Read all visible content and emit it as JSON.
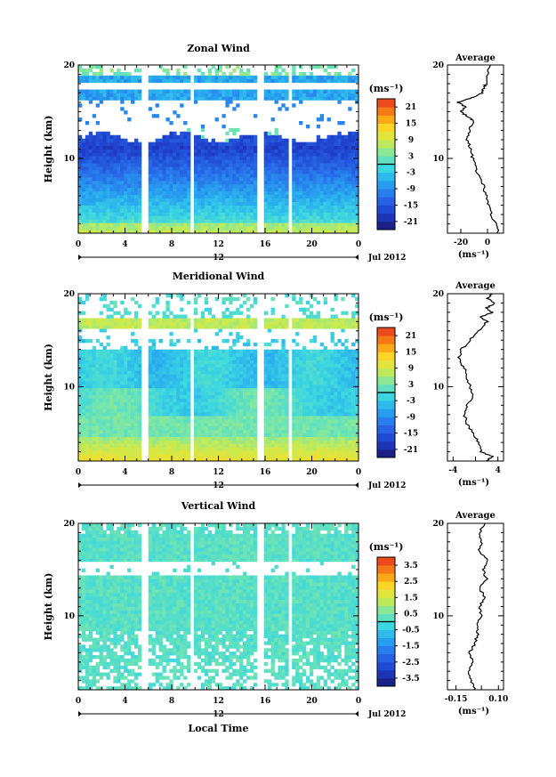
{
  "chart_data": [
    {
      "type": "heatmap",
      "id": "zonal",
      "title": "Zonal Wind",
      "ylabel": "Height (km)",
      "xlabel": "",
      "x_ticks": [
        "0",
        "4",
        "8",
        "12",
        "16",
        "20",
        "0"
      ],
      "xlim": [
        0,
        24
      ],
      "y_ticks": [
        "10",
        "20"
      ],
      "ylim": [
        2,
        20
      ],
      "date_label": "Jul 2012",
      "noon_label": "12",
      "unit_label": "(ms⁻¹)",
      "colorbar_ticks": [
        "21",
        "15",
        "9",
        "3",
        "-3",
        "-9",
        "-15",
        "-21"
      ],
      "colorbar_range": [
        -24,
        24
      ],
      "data_gaps_hours": [
        [
          5.5,
          5.9
        ],
        [
          9.5,
          9.9
        ],
        [
          15.4,
          15.8
        ],
        [
          18.1,
          18.4
        ]
      ],
      "profile": {
        "title": "Average",
        "x_ticks": [
          "-20",
          "0"
        ],
        "xlim": [
          -30,
          12
        ],
        "unit_label": "(ms⁻¹)",
        "points": [
          [
            8,
            2
          ],
          [
            6,
            3
          ],
          [
            3,
            4
          ],
          [
            1,
            5
          ],
          [
            -1,
            6
          ],
          [
            -3,
            7
          ],
          [
            -6,
            8
          ],
          [
            -9,
            9
          ],
          [
            -11,
            10
          ],
          [
            -13,
            11
          ],
          [
            -15,
            12
          ],
          [
            -14,
            13
          ],
          [
            -10,
            14
          ],
          [
            -15,
            14.5
          ],
          [
            -20,
            15
          ],
          [
            -16,
            15.5
          ],
          [
            -22,
            16
          ],
          [
            -12,
            16.5
          ],
          [
            -4,
            17
          ],
          [
            -3,
            17.5
          ],
          [
            -1,
            18
          ],
          [
            0,
            19
          ],
          [
            2,
            20
          ]
        ]
      }
    },
    {
      "type": "heatmap",
      "id": "meridional",
      "title": "Meridional Wind",
      "ylabel": "Height (km)",
      "xlabel": "",
      "x_ticks": [
        "0",
        "4",
        "8",
        "12",
        "16",
        "20",
        "0"
      ],
      "xlim": [
        0,
        24
      ],
      "y_ticks": [
        "10",
        "20"
      ],
      "ylim": [
        2,
        20
      ],
      "date_label": "Jul 2012",
      "noon_label": "12",
      "unit_label": "(ms⁻¹)",
      "colorbar_ticks": [
        "21",
        "15",
        "9",
        "3",
        "-3",
        "-9",
        "-15",
        "-21"
      ],
      "colorbar_range": [
        -24,
        24
      ],
      "data_gaps_hours": [
        [
          5.5,
          5.9
        ],
        [
          9.5,
          9.9
        ],
        [
          15.4,
          15.8
        ],
        [
          18.1,
          18.4
        ]
      ],
      "profile": {
        "title": "Average",
        "x_ticks": [
          "-4",
          "4"
        ],
        "xlim": [
          -5,
          5
        ],
        "unit_label": "(ms⁻¹)",
        "points": [
          [
            2,
            2
          ],
          [
            3,
            2.5
          ],
          [
            1,
            3
          ],
          [
            0.5,
            4
          ],
          [
            -0.5,
            5
          ],
          [
            -1.5,
            6
          ],
          [
            -2,
            7
          ],
          [
            -1.5,
            8
          ],
          [
            -0.5,
            9
          ],
          [
            -1,
            10
          ],
          [
            -1.5,
            11
          ],
          [
            -2,
            12
          ],
          [
            -3,
            13
          ],
          [
            -2.5,
            14
          ],
          [
            -1,
            15
          ],
          [
            0.5,
            16
          ],
          [
            2,
            17
          ],
          [
            1,
            17.5
          ],
          [
            3,
            18
          ],
          [
            2,
            18.5
          ],
          [
            3.5,
            19
          ],
          [
            2,
            19.5
          ],
          [
            3,
            20
          ]
        ]
      }
    },
    {
      "type": "heatmap",
      "id": "vertical",
      "title": "Vertical Wind",
      "ylabel": "Height (km)",
      "xlabel": "Local Time",
      "x_ticks": [
        "0",
        "4",
        "8",
        "12",
        "16",
        "20",
        "0"
      ],
      "xlim": [
        0,
        24
      ],
      "y_ticks": [
        "10",
        "20"
      ],
      "ylim": [
        2,
        20
      ],
      "date_label": "Jul 2012",
      "noon_label": "12",
      "unit_label": "(ms⁻¹)",
      "colorbar_ticks": [
        "3.5",
        "2.5",
        "1.5",
        "0.5",
        "-0.5",
        "-1.5",
        "-2.5",
        "-3.5"
      ],
      "colorbar_range": [
        -4,
        4
      ],
      "data_gaps_hours": [
        [
          5.5,
          5.9
        ],
        [
          9.5,
          9.9
        ],
        [
          15.4,
          15.8
        ],
        [
          18.1,
          18.4
        ]
      ],
      "profile": {
        "title": "Average",
        "x_ticks": [
          "-0.15",
          "0.10"
        ],
        "xlim": [
          -0.2,
          0.13
        ],
        "unit_label": "(ms⁻¹)",
        "points": [
          [
            -0.04,
            2
          ],
          [
            -0.06,
            3
          ],
          [
            -0.08,
            4
          ],
          [
            -0.05,
            5
          ],
          [
            -0.07,
            6
          ],
          [
            -0.04,
            7
          ],
          [
            -0.02,
            8
          ],
          [
            -0.03,
            9
          ],
          [
            0.0,
            10
          ],
          [
            -0.01,
            11
          ],
          [
            0.02,
            12
          ],
          [
            -0.01,
            13
          ],
          [
            0.03,
            14
          ],
          [
            0.01,
            15
          ],
          [
            0.04,
            16
          ],
          [
            -0.02,
            17
          ],
          [
            0.0,
            18
          ],
          [
            -0.01,
            19
          ],
          [
            0.02,
            20
          ]
        ]
      }
    }
  ]
}
